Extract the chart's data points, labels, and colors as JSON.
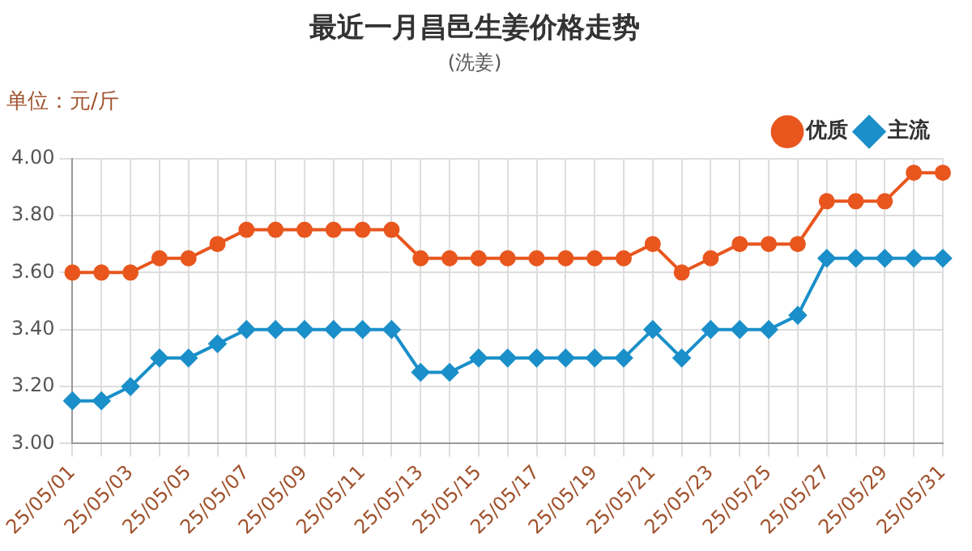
{
  "chart_data": {
    "type": "line",
    "title": "最近一月昌邑生姜价格走势",
    "subtitle": "(洗姜)",
    "ylabel": "单位：元/斤",
    "categories": [
      "25/05/01",
      null,
      "25/05/03",
      null,
      "25/05/05",
      null,
      "25/05/07",
      null,
      "25/05/09",
      null,
      "25/05/11",
      null,
      "25/05/13",
      null,
      "25/05/15",
      null,
      "25/05/17",
      null,
      "25/05/19",
      null,
      "25/05/21",
      null,
      "25/05/23",
      null,
      "25/05/25",
      null,
      "25/05/27",
      null,
      "25/05/29",
      null,
      "25/05/31"
    ],
    "series": [
      {
        "name": "优质",
        "color": "#e8561e",
        "marker": "circle",
        "values": [
          3.6,
          3.6,
          3.6,
          3.65,
          3.65,
          3.7,
          3.75,
          3.75,
          3.75,
          3.75,
          3.75,
          3.75,
          3.65,
          3.65,
          3.65,
          3.65,
          3.65,
          3.65,
          3.65,
          3.65,
          3.7,
          3.6,
          3.65,
          3.7,
          3.7,
          3.7,
          3.85,
          3.85,
          3.85,
          3.95,
          3.95
        ]
      },
      {
        "name": "主流",
        "color": "#1a8fc9",
        "marker": "diamond",
        "values": [
          3.15,
          3.15,
          3.2,
          3.3,
          3.3,
          3.35,
          3.4,
          3.4,
          3.4,
          3.4,
          3.4,
          3.4,
          3.25,
          3.25,
          3.3,
          3.3,
          3.3,
          3.3,
          3.3,
          3.3,
          3.4,
          3.3,
          3.4,
          3.4,
          3.4,
          3.45,
          3.65,
          3.65,
          3.65,
          3.65,
          3.65
        ]
      }
    ],
    "ylim": [
      3.0,
      4.0
    ],
    "yticks": [
      {
        "value": 3,
        "label": "3.00"
      },
      {
        "value": 3.2,
        "label": "3.20"
      },
      {
        "value": 3.4,
        "label": "3.40"
      },
      {
        "value": 3.6,
        "label": "3.60"
      },
      {
        "value": 3.8,
        "label": "3.80"
      },
      {
        "value": 4,
        "label": "4.00"
      }
    ],
    "grid": true,
    "legend": "top right",
    "line_style": "solid"
  }
}
